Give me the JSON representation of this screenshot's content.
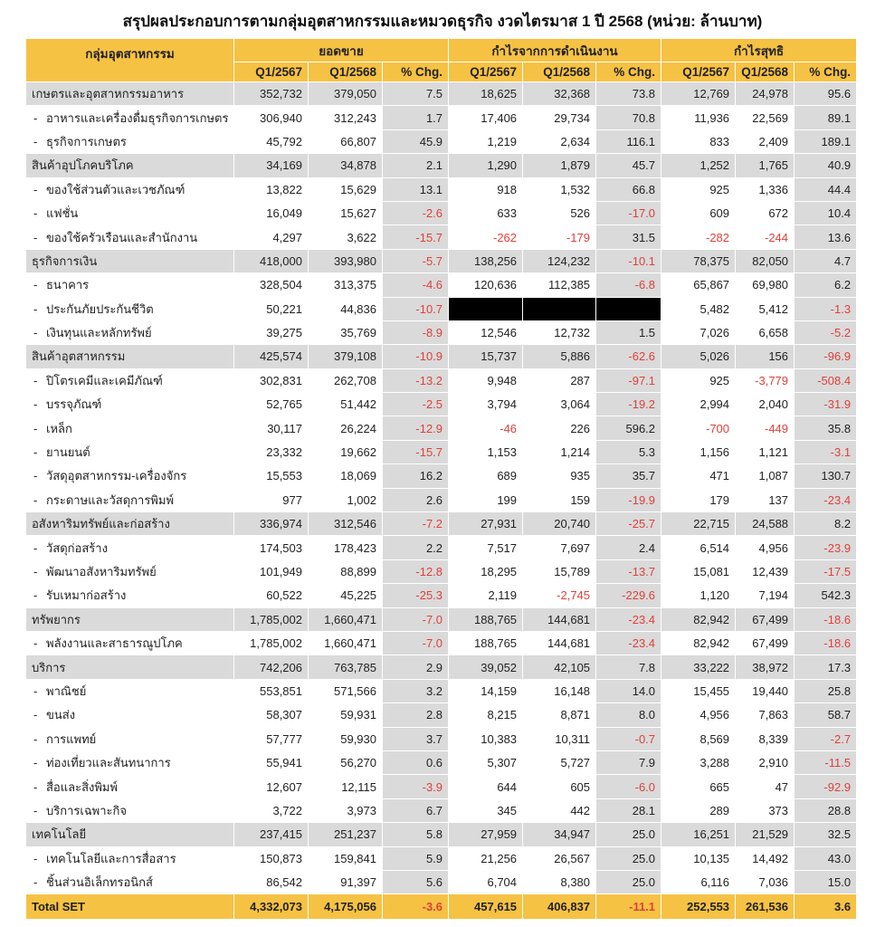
{
  "title": "สรุปผลประกอบการตามกลุ่มอุตสาหกรรมและหมวดธุรกิจ งวดไตรมาส 1 ปี 2568 (หน่วย: ล้านบาท)",
  "header": {
    "group_col": "กลุ่มอุตสาหกรรม",
    "sections": [
      "ยอดขาย",
      "กำไรจากการดำเนินงาน",
      "กำไรสุทธิ"
    ],
    "subcols": [
      "Q1/2567",
      "Q1/2568",
      "% Chg."
    ]
  },
  "colors": {
    "header": "#f6c244",
    "group_row": "#dadada",
    "negative": "#e0403a"
  },
  "rows": [
    {
      "type": "group",
      "name": "เกษตรและอุตสาหกรรมอาหาร",
      "v": [
        "352,732",
        "379,050",
        "7.5",
        "18,625",
        "32,368",
        "73.8",
        "12,769",
        "24,978",
        "95.6"
      ]
    },
    {
      "type": "sub",
      "name": "อาหารและเครื่องดื่มธุรกิจการเกษตร",
      "v": [
        "306,940",
        "312,243",
        "1.7",
        "17,406",
        "29,734",
        "70.8",
        "11,936",
        "22,569",
        "89.1"
      ]
    },
    {
      "type": "sub",
      "name": "ธุรกิจการเกษตร",
      "v": [
        "45,792",
        "66,807",
        "45.9",
        "1,219",
        "2,634",
        "116.1",
        "833",
        "2,409",
        "189.1"
      ]
    },
    {
      "type": "group",
      "name": "สินค้าอุปโภคบริโภค",
      "v": [
        "34,169",
        "34,878",
        "2.1",
        "1,290",
        "1,879",
        "45.7",
        "1,252",
        "1,765",
        "40.9"
      ]
    },
    {
      "type": "sub",
      "name": "ของใช้ส่วนตัวและเวชภัณฑ์",
      "v": [
        "13,822",
        "15,629",
        "13.1",
        "918",
        "1,532",
        "66.8",
        "925",
        "1,336",
        "44.4"
      ]
    },
    {
      "type": "sub",
      "name": "แฟชั่น",
      "v": [
        "16,049",
        "15,627",
        "-2.6",
        "633",
        "526",
        "-17.0",
        "609",
        "672",
        "10.4"
      ]
    },
    {
      "type": "sub",
      "name": "ของใช้ครัวเรือนและสำนักงาน",
      "v": [
        "4,297",
        "3,622",
        "-15.7",
        "-262",
        "-179",
        "31.5",
        "-282",
        "-244",
        "13.6"
      ]
    },
    {
      "type": "group",
      "name": "ธุรกิจการเงิน",
      "v": [
        "418,000",
        "393,980",
        "-5.7",
        "138,256",
        "124,232",
        "-10.1",
        "78,375",
        "82,050",
        "4.7"
      ]
    },
    {
      "type": "sub",
      "name": "ธนาคาร",
      "v": [
        "328,504",
        "313,375",
        "-4.6",
        "120,636",
        "112,385",
        "-6.8",
        "65,867",
        "69,980",
        "6.2"
      ]
    },
    {
      "type": "sub",
      "name": "ประกันภัยประกันชีวิต",
      "v": [
        "50,221",
        "44,836",
        "-10.7",
        null,
        null,
        null,
        "5,482",
        "5,412",
        "-1.3"
      ]
    },
    {
      "type": "sub",
      "name": "เงินทุนและหลักทรัพย์",
      "v": [
        "39,275",
        "35,769",
        "-8.9",
        "12,546",
        "12,732",
        "1.5",
        "7,026",
        "6,658",
        "-5.2"
      ]
    },
    {
      "type": "group",
      "name": "สินค้าอุตสาหกรรม",
      "v": [
        "425,574",
        "379,108",
        "-10.9",
        "15,737",
        "5,886",
        "-62.6",
        "5,026",
        "156",
        "-96.9"
      ]
    },
    {
      "type": "sub",
      "name": "ปิโตรเคมีและเคมีภัณฑ์",
      "v": [
        "302,831",
        "262,708",
        "-13.2",
        "9,948",
        "287",
        "-97.1",
        "925",
        "-3,779",
        "-508.4"
      ]
    },
    {
      "type": "sub",
      "name": "บรรจุภัณฑ์",
      "v": [
        "52,765",
        "51,442",
        "-2.5",
        "3,794",
        "3,064",
        "-19.2",
        "2,994",
        "2,040",
        "-31.9"
      ]
    },
    {
      "type": "sub",
      "name": "เหล็ก",
      "v": [
        "30,117",
        "26,224",
        "-12.9",
        "-46",
        "226",
        "596.2",
        "-700",
        "-449",
        "35.8"
      ]
    },
    {
      "type": "sub",
      "name": "ยานยนต์",
      "v": [
        "23,332",
        "19,662",
        "-15.7",
        "1,153",
        "1,214",
        "5.3",
        "1,156",
        "1,121",
        "-3.1"
      ]
    },
    {
      "type": "sub",
      "name": "วัสดุอุตสาหกรรม-เครื่องจักร",
      "v": [
        "15,553",
        "18,069",
        "16.2",
        "689",
        "935",
        "35.7",
        "471",
        "1,087",
        "130.7"
      ]
    },
    {
      "type": "sub",
      "name": "กระดาษและวัสดุการพิมพ์",
      "v": [
        "977",
        "1,002",
        "2.6",
        "199",
        "159",
        "-19.9",
        "179",
        "137",
        "-23.4"
      ]
    },
    {
      "type": "group",
      "name": "อสังหาริมทรัพย์และก่อสร้าง",
      "v": [
        "336,974",
        "312,546",
        "-7.2",
        "27,931",
        "20,740",
        "-25.7",
        "22,715",
        "24,588",
        "8.2"
      ]
    },
    {
      "type": "sub",
      "name": "วัสดุก่อสร้าง",
      "v": [
        "174,503",
        "178,423",
        "2.2",
        "7,517",
        "7,697",
        "2.4",
        "6,514",
        "4,956",
        "-23.9"
      ]
    },
    {
      "type": "sub",
      "name": "พัฒนาอสังหาริมทรัพย์",
      "v": [
        "101,949",
        "88,899",
        "-12.8",
        "18,295",
        "15,789",
        "-13.7",
        "15,081",
        "12,439",
        "-17.5"
      ]
    },
    {
      "type": "sub",
      "name": "รับเหมาก่อสร้าง",
      "v": [
        "60,522",
        "45,225",
        "-25.3",
        "2,119",
        "-2,745",
        "-229.6",
        "1,120",
        "7,194",
        "542.3"
      ]
    },
    {
      "type": "group",
      "name": "ทรัพยากร",
      "v": [
        "1,785,002",
        "1,660,471",
        "-7.0",
        "188,765",
        "144,681",
        "-23.4",
        "82,942",
        "67,499",
        "-18.6"
      ]
    },
    {
      "type": "sub",
      "name": "พลังงานและสาธารณูปโภค",
      "v": [
        "1,785,002",
        "1,660,471",
        "-7.0",
        "188,765",
        "144,681",
        "-23.4",
        "82,942",
        "67,499",
        "-18.6"
      ]
    },
    {
      "type": "group",
      "name": "บริการ",
      "v": [
        "742,206",
        "763,785",
        "2.9",
        "39,052",
        "42,105",
        "7.8",
        "33,222",
        "38,972",
        "17.3"
      ]
    },
    {
      "type": "sub",
      "name": "พาณิชย์",
      "v": [
        "553,851",
        "571,566",
        "3.2",
        "14,159",
        "16,148",
        "14.0",
        "15,455",
        "19,440",
        "25.8"
      ]
    },
    {
      "type": "sub",
      "name": "ขนส่ง",
      "v": [
        "58,307",
        "59,931",
        "2.8",
        "8,215",
        "8,871",
        "8.0",
        "4,956",
        "7,863",
        "58.7"
      ]
    },
    {
      "type": "sub",
      "name": "การแพทย์",
      "v": [
        "57,777",
        "59,930",
        "3.7",
        "10,383",
        "10,311",
        "-0.7",
        "8,569",
        "8,339",
        "-2.7"
      ]
    },
    {
      "type": "sub",
      "name": "ท่องเที่ยวและสันทนาการ",
      "v": [
        "55,941",
        "56,270",
        "0.6",
        "5,307",
        "5,727",
        "7.9",
        "3,288",
        "2,910",
        "-11.5"
      ]
    },
    {
      "type": "sub",
      "name": "สื่อและสิ่งพิมพ์",
      "v": [
        "12,607",
        "12,115",
        "-3.9",
        "644",
        "605",
        "-6.0",
        "665",
        "47",
        "-92.9"
      ]
    },
    {
      "type": "sub",
      "name": "บริการเฉพาะกิจ",
      "v": [
        "3,722",
        "3,973",
        "6.7",
        "345",
        "442",
        "28.1",
        "289",
        "373",
        "28.8"
      ]
    },
    {
      "type": "group",
      "name": "เทคโนโลยี",
      "v": [
        "237,415",
        "251,237",
        "5.8",
        "27,959",
        "34,947",
        "25.0",
        "16,251",
        "21,529",
        "32.5"
      ]
    },
    {
      "type": "sub",
      "name": "เทคโนโลยีและการสื่อสาร",
      "v": [
        "150,873",
        "159,841",
        "5.9",
        "21,256",
        "26,567",
        "25.0",
        "10,135",
        "14,492",
        "43.0"
      ]
    },
    {
      "type": "sub",
      "name": "ชิ้นส่วนอิเล็กทรอนิกส์",
      "v": [
        "86,542",
        "91,397",
        "5.6",
        "6,704",
        "8,380",
        "25.0",
        "6,116",
        "7,036",
        "15.0"
      ]
    },
    {
      "type": "total",
      "name": "Total SET",
      "v": [
        "4,332,073",
        "4,175,056",
        "-3.6",
        "457,615",
        "406,837",
        "-11.1",
        "252,553",
        "261,536",
        "3.6"
      ]
    }
  ]
}
